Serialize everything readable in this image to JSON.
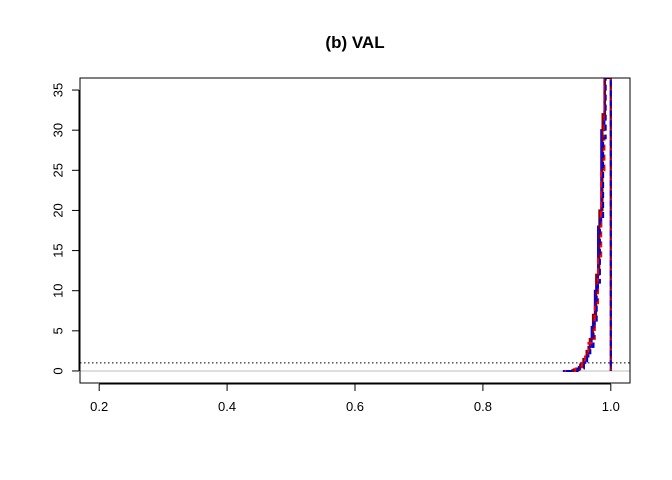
{
  "chart_data": {
    "type": "line",
    "title": "(b) VAL",
    "xlabel": "",
    "ylabel": "",
    "xlim": [
      0.17,
      1.03
    ],
    "ylim": [
      -1.5,
      36.5
    ],
    "x_ticks": [
      "0.2",
      "0.4",
      "0.6",
      "0.8",
      "1.0"
    ],
    "y_ticks": [
      "0",
      "5",
      "10",
      "15",
      "20",
      "25",
      "30",
      "35"
    ],
    "grid": false,
    "legend": "none",
    "reference_lines": [
      {
        "y": 0,
        "style": "solid",
        "color": "#bebebe"
      },
      {
        "y": 1,
        "style": "dotted",
        "color": "#000000"
      }
    ],
    "series": [
      {
        "color": "#0000ff",
        "style": "solid",
        "x": [
          0.925,
          0.94,
          0.95,
          0.955,
          0.96,
          0.965,
          0.97,
          0.975,
          0.98,
          0.985,
          0.99,
          0.995,
          1.0
        ],
        "y": [
          0,
          0.1,
          0.5,
          1.0,
          1.8,
          3.0,
          5.5,
          10.0,
          18.0,
          30.0,
          36.5,
          36.5,
          0
        ]
      },
      {
        "color": "#8b0000",
        "style": "solid",
        "x": [
          0.93,
          0.942,
          0.952,
          0.957,
          0.962,
          0.967,
          0.972,
          0.977,
          0.982,
          0.987,
          0.991,
          0.996,
          1.0
        ],
        "y": [
          0,
          0.2,
          0.8,
          1.5,
          2.5,
          4.0,
          7.0,
          12.0,
          20.0,
          32.0,
          36.5,
          36.5,
          0
        ]
      },
      {
        "color": "#ff0000",
        "style": "dashed",
        "x": [
          0.928,
          0.945,
          0.955,
          0.96,
          0.965,
          0.97,
          0.975,
          0.98,
          0.985,
          0.99,
          0.994,
          0.998,
          1.0
        ],
        "y": [
          0,
          0.3,
          1.0,
          2.0,
          3.5,
          4.0,
          8.0,
          14.0,
          25.0,
          36.5,
          36.5,
          36.5,
          0
        ]
      },
      {
        "color": "#0000cd",
        "style": "dashed",
        "x": [
          0.93,
          0.948,
          0.958,
          0.963,
          0.968,
          0.973,
          0.978,
          0.983,
          0.988,
          0.992,
          0.997,
          1.0
        ],
        "y": [
          0,
          0.3,
          1.2,
          2.2,
          3.0,
          6.0,
          11.0,
          19.0,
          29.0,
          36.5,
          36.5,
          0
        ]
      }
    ]
  }
}
